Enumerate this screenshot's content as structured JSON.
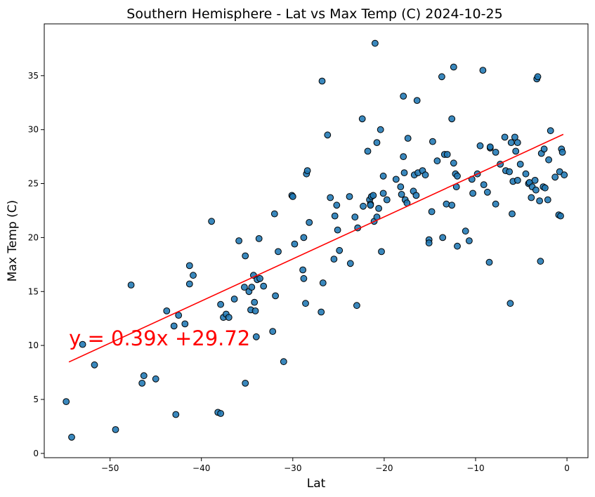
{
  "chart_data": {
    "type": "scatter",
    "title": "Southern Hemisphere - Lat vs Max Temp (C) 2024-10-25",
    "xlabel": "Lat",
    "ylabel": "Max Temp (C)",
    "xlim": [
      -57.2,
      2.3
    ],
    "ylim": [
      -0.4,
      39.8
    ],
    "xticks": [
      -50,
      -40,
      -30,
      -20,
      -10,
      0
    ],
    "xtick_labels": [
      "−50",
      "−40",
      "−30",
      "−20",
      "−10",
      "0"
    ],
    "yticks": [
      0,
      5,
      10,
      15,
      20,
      25,
      30,
      35
    ],
    "ytick_labels": [
      "0",
      "5",
      "10",
      "15",
      "20",
      "25",
      "30",
      "35"
    ],
    "grid": false,
    "point_color": "#1f77b4",
    "point_edge_color": "#000000",
    "regression": {
      "slope": 0.39,
      "intercept": 29.72,
      "x_range": [
        -54.5,
        -0.4
      ],
      "label": "y = 0.39x +29.72",
      "label_color": "#ff0000",
      "line_color": "#ff0000"
    },
    "points": [
      [
        -54.8,
        4.8
      ],
      [
        -54.2,
        1.5
      ],
      [
        -53.0,
        10.1
      ],
      [
        -51.7,
        8.2
      ],
      [
        -49.4,
        2.2
      ],
      [
        -47.7,
        15.6
      ],
      [
        -46.5,
        6.5
      ],
      [
        -46.3,
        7.2
      ],
      [
        -45.0,
        6.9
      ],
      [
        -43.8,
        13.2
      ],
      [
        -43.0,
        11.8
      ],
      [
        -42.8,
        3.6
      ],
      [
        -42.5,
        12.8
      ],
      [
        -41.8,
        12.0
      ],
      [
        -41.3,
        17.4
      ],
      [
        -41.3,
        15.7
      ],
      [
        -40.9,
        16.5
      ],
      [
        -38.9,
        21.5
      ],
      [
        -38.2,
        3.8
      ],
      [
        -37.9,
        3.7
      ],
      [
        -37.9,
        13.8
      ],
      [
        -37.6,
        12.6
      ],
      [
        -37.3,
        12.9
      ],
      [
        -37.0,
        12.6
      ],
      [
        -36.4,
        14.3
      ],
      [
        -35.9,
        19.7
      ],
      [
        -35.3,
        15.4
      ],
      [
        -35.2,
        6.5
      ],
      [
        -35.2,
        18.3
      ],
      [
        -34.8,
        15.0
      ],
      [
        -34.6,
        13.3
      ],
      [
        -34.5,
        15.4
      ],
      [
        -34.3,
        16.5
      ],
      [
        -34.2,
        14.0
      ],
      [
        -34.1,
        13.2
      ],
      [
        -34.0,
        10.8
      ],
      [
        -33.9,
        16.1
      ],
      [
        -33.7,
        19.9
      ],
      [
        -33.6,
        16.2
      ],
      [
        -33.2,
        15.5
      ],
      [
        -32.2,
        11.3
      ],
      [
        -32.0,
        22.2
      ],
      [
        -31.9,
        14.6
      ],
      [
        -31.6,
        18.7
      ],
      [
        -31.0,
        8.5
      ],
      [
        -30.1,
        23.9
      ],
      [
        -30.0,
        23.8
      ],
      [
        -29.8,
        19.4
      ],
      [
        -28.9,
        17.0
      ],
      [
        -28.8,
        16.2
      ],
      [
        -28.8,
        20.0
      ],
      [
        -28.6,
        13.9
      ],
      [
        -28.5,
        25.9
      ],
      [
        -28.4,
        26.2
      ],
      [
        -28.2,
        21.4
      ],
      [
        -26.9,
        13.1
      ],
      [
        -26.8,
        34.5
      ],
      [
        -26.7,
        15.8
      ],
      [
        -26.2,
        29.5
      ],
      [
        -25.9,
        23.7
      ],
      [
        -25.5,
        18.0
      ],
      [
        -25.4,
        22.0
      ],
      [
        -25.2,
        23.0
      ],
      [
        -25.1,
        20.7
      ],
      [
        -24.9,
        18.8
      ],
      [
        -23.8,
        23.8
      ],
      [
        -23.7,
        17.6
      ],
      [
        -23.2,
        21.9
      ],
      [
        -23.0,
        13.7
      ],
      [
        -22.9,
        20.9
      ],
      [
        -22.4,
        31.0
      ],
      [
        -22.3,
        22.9
      ],
      [
        -21.8,
        28.0
      ],
      [
        -21.6,
        23.5
      ],
      [
        -21.5,
        23.1
      ],
      [
        -21.5,
        23.0
      ],
      [
        -21.4,
        23.8
      ],
      [
        -21.2,
        23.9
      ],
      [
        -21.1,
        21.5
      ],
      [
        -21.0,
        38.0
      ],
      [
        -20.8,
        28.8
      ],
      [
        -20.8,
        21.9
      ],
      [
        -20.6,
        22.7
      ],
      [
        -20.4,
        30.0
      ],
      [
        -20.3,
        18.7
      ],
      [
        -20.1,
        24.1
      ],
      [
        -20.1,
        25.7
      ],
      [
        -19.7,
        23.5
      ],
      [
        -18.7,
        25.4
      ],
      [
        -18.2,
        24.7
      ],
      [
        -18.1,
        24.0
      ],
      [
        -17.9,
        33.1
      ],
      [
        -17.9,
        27.5
      ],
      [
        -17.8,
        26.0
      ],
      [
        -17.7,
        23.5
      ],
      [
        -17.5,
        23.2
      ],
      [
        -17.4,
        29.2
      ],
      [
        -16.8,
        24.3
      ],
      [
        -16.7,
        25.8
      ],
      [
        -16.5,
        23.9
      ],
      [
        -16.4,
        32.7
      ],
      [
        -16.3,
        26.0
      ],
      [
        -15.8,
        26.2
      ],
      [
        -15.5,
        25.8
      ],
      [
        -15.1,
        19.8
      ],
      [
        -15.1,
        19.5
      ],
      [
        -14.8,
        22.4
      ],
      [
        -14.7,
        28.9
      ],
      [
        -14.2,
        27.1
      ],
      [
        -13.7,
        34.9
      ],
      [
        -13.6,
        20.0
      ],
      [
        -13.4,
        27.7
      ],
      [
        -13.2,
        23.1
      ],
      [
        -13.1,
        27.7
      ],
      [
        -12.6,
        31.0
      ],
      [
        -12.6,
        23.0
      ],
      [
        -12.4,
        35.8
      ],
      [
        -12.4,
        26.9
      ],
      [
        -12.2,
        25.9
      ],
      [
        -12.1,
        24.7
      ],
      [
        -12.0,
        25.7
      ],
      [
        -12.0,
        19.2
      ],
      [
        -11.1,
        20.6
      ],
      [
        -10.7,
        19.7
      ],
      [
        -10.4,
        25.4
      ],
      [
        -10.3,
        24.1
      ],
      [
        -9.8,
        25.9
      ],
      [
        -9.5,
        28.5
      ],
      [
        -9.2,
        35.5
      ],
      [
        -9.1,
        24.9
      ],
      [
        -8.7,
        24.2
      ],
      [
        -8.5,
        17.7
      ],
      [
        -8.4,
        28.3
      ],
      [
        -8.4,
        28.4
      ],
      [
        -7.8,
        23.1
      ],
      [
        -7.8,
        27.9
      ],
      [
        -7.3,
        26.8
      ],
      [
        -6.8,
        29.3
      ],
      [
        -6.7,
        26.2
      ],
      [
        -6.3,
        26.1
      ],
      [
        -6.2,
        13.9
      ],
      [
        -6.1,
        28.8
      ],
      [
        -6.0,
        22.2
      ],
      [
        -5.9,
        25.2
      ],
      [
        -5.7,
        29.3
      ],
      [
        -5.6,
        28.0
      ],
      [
        -5.4,
        28.8
      ],
      [
        -5.4,
        25.3
      ],
      [
        -5.1,
        26.8
      ],
      [
        -4.5,
        25.9
      ],
      [
        -4.2,
        25.0
      ],
      [
        -4.1,
        25.1
      ],
      [
        -3.9,
        23.7
      ],
      [
        -3.8,
        24.7
      ],
      [
        -3.5,
        25.3
      ],
      [
        -3.4,
        24.4
      ],
      [
        -3.3,
        34.7
      ],
      [
        -3.2,
        34.9
      ],
      [
        -3.0,
        23.4
      ],
      [
        -2.9,
        17.8
      ],
      [
        -2.8,
        27.8
      ],
      [
        -2.6,
        24.7
      ],
      [
        -2.5,
        28.2
      ],
      [
        -2.4,
        24.6
      ],
      [
        -2.1,
        23.5
      ],
      [
        -2.0,
        27.2
      ],
      [
        -1.8,
        29.9
      ],
      [
        -1.3,
        25.6
      ],
      [
        -0.9,
        22.1
      ],
      [
        -0.8,
        26.1
      ],
      [
        -0.7,
        22.0
      ],
      [
        -0.6,
        28.2
      ],
      [
        -0.5,
        27.9
      ],
      [
        -0.3,
        25.8
      ]
    ]
  }
}
